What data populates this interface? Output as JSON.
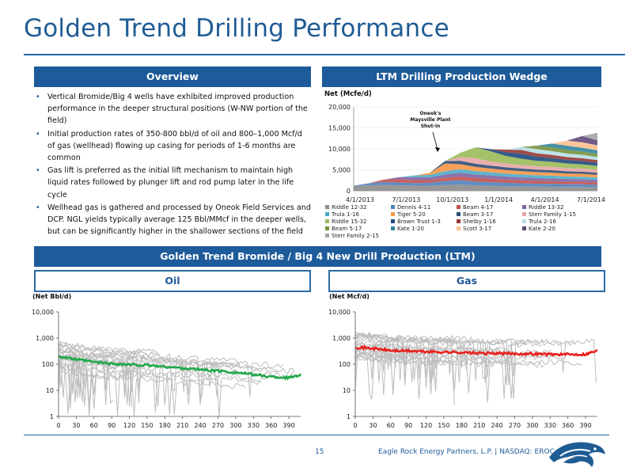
{
  "title": "Golden Trend Drilling Performance",
  "overview": {
    "header": "Overview",
    "bullets": [
      "Vertical Bromide/Big 4 wells have exhibited improved production performance in the deeper structural positions (W-NW portion of the field)",
      "Initial production rates of 350-800 bbl/d of oil and 800–1,000 Mcf/d of gas (wellhead) flowing up casing for periods of 1-6 months are common",
      "Gas lift is preferred as the initial lift mechanism to maintain high liquid rates followed by plunger lift and rod pump later in the life cycle",
      "Wellhead gas is gathered and processed by Oneok Field Services and DCP.  NGL yields typically average 125 Bbl/MMcf in the deeper wells, but can be significantly higher in the shallower sections of the field"
    ]
  },
  "wedge": {
    "header": "LTM Drilling Production Wedge",
    "annotation": [
      "Oneok's",
      "Maysville Plant",
      "Shut-in"
    ]
  },
  "section_header": "Golden Trend Bromide / Big 4 New Drill Production (LTM)",
  "oil_header": "Oil",
  "gas_header": "Gas",
  "colors": {
    "accent": "#1e5b9a",
    "oil_line": "#22a84a",
    "gas_line": "#e8221f",
    "wells": "#bdbdbd"
  },
  "footer": {
    "page": "15",
    "company": "Eagle Rock Energy Partners, L.P.  |  NASDAQ: EROC"
  },
  "logo_icon": "eagle-head-icon",
  "chart_data": [
    {
      "type": "area",
      "ylabel": "Net (Mcfe/d)",
      "x_ticks": [
        "4/1/2013",
        "7/1/2013",
        "10/1/2013",
        "1/1/2014",
        "4/1/2014",
        "7/1/2014"
      ],
      "y_ticks": [
        "0",
        "5,000",
        "10,000",
        "15,000",
        "20,000"
      ],
      "ylim": [
        0,
        20000
      ],
      "stacked": true,
      "x_dates": [
        "4/1/2013",
        "5/1/2013",
        "6/1/2013",
        "7/1/2013",
        "8/1/2013",
        "9/1/2013",
        "10/1/2013",
        "11/1/2013",
        "12/1/2013",
        "1/1/2014",
        "2/1/2014",
        "3/1/2014",
        "4/1/2014",
        "5/1/2014",
        "6/1/2014",
        "7/1/2014",
        "8/1/2014"
      ],
      "series": [
        {
          "name": "Riddle 12-32",
          "color": "#8c8c8c",
          "values": [
            1200,
            1300,
            1400,
            1300,
            1250,
            1200,
            1400,
            1500,
            1300,
            1200,
            1100,
            1050,
            1000,
            950,
            900,
            900,
            850
          ]
        },
        {
          "name": "Dennis 4-11",
          "color": "#4f81bd",
          "values": [
            0,
            500,
            700,
            650,
            600,
            700,
            900,
            1000,
            900,
            850,
            800,
            750,
            700,
            700,
            650,
            650,
            600
          ]
        },
        {
          "name": "Beam 4-17",
          "color": "#c0504d",
          "values": [
            0,
            0,
            600,
            800,
            700,
            650,
            800,
            900,
            850,
            800,
            750,
            700,
            650,
            650,
            600,
            600,
            550
          ]
        },
        {
          "name": "Riddle 13-32",
          "color": "#8064a2",
          "values": [
            0,
            0,
            0,
            500,
            700,
            650,
            800,
            900,
            850,
            800,
            750,
            700,
            700,
            650,
            650,
            600,
            600
          ]
        },
        {
          "name": "Trula 1-16",
          "color": "#4bacc6",
          "values": [
            0,
            0,
            0,
            0,
            400,
            600,
            800,
            850,
            800,
            750,
            700,
            700,
            650,
            650,
            600,
            600,
            550
          ]
        },
        {
          "name": "Tiger 5-20",
          "color": "#f79646",
          "values": [
            0,
            0,
            0,
            0,
            0,
            500,
            1800,
            1200,
            1000,
            900,
            850,
            800,
            750,
            750,
            700,
            700,
            650
          ]
        },
        {
          "name": "Beam 3-17",
          "color": "#2c4d75",
          "values": [
            0,
            0,
            0,
            0,
            0,
            0,
            600,
            800,
            750,
            700,
            650,
            600,
            600,
            550,
            550,
            500,
            500
          ]
        },
        {
          "name": "Sterr Family 1-15",
          "color": "#e6a6a6",
          "values": [
            0,
            0,
            0,
            0,
            0,
            0,
            0,
            900,
            1300,
            1000,
            900,
            850,
            800,
            800,
            750,
            750,
            700
          ]
        },
        {
          "name": "Riddle 15-32",
          "color": "#9bbb59",
          "values": [
            0,
            0,
            0,
            0,
            0,
            0,
            0,
            1000,
            2600,
            2400,
            1800,
            1500,
            1300,
            1200,
            1100,
            1000,
            950
          ]
        },
        {
          "name": "Brown Trust 1-3",
          "color": "#1f497d",
          "values": [
            0,
            0,
            0,
            0,
            0,
            0,
            0,
            0,
            0,
            500,
            900,
            1200,
            1000,
            900,
            850,
            800,
            750
          ]
        },
        {
          "name": "Shelby 1-16",
          "color": "#953735",
          "values": [
            0,
            0,
            0,
            0,
            0,
            0,
            0,
            0,
            0,
            0,
            600,
            900,
            800,
            750,
            700,
            650,
            600
          ]
        },
        {
          "name": "Trula 2-16",
          "color": "#b7dee8",
          "values": [
            0,
            0,
            0,
            0,
            0,
            0,
            0,
            0,
            0,
            0,
            0,
            700,
            1000,
            900,
            850,
            800,
            750
          ]
        },
        {
          "name": "Beam 5-17",
          "color": "#77933c",
          "values": [
            0,
            0,
            0,
            0,
            0,
            0,
            0,
            0,
            0,
            0,
            0,
            0,
            800,
            900,
            850,
            800,
            750
          ]
        },
        {
          "name": "Kate 1-20",
          "color": "#31859c",
          "values": [
            0,
            0,
            0,
            0,
            0,
            0,
            0,
            0,
            0,
            0,
            0,
            0,
            0,
            900,
            1000,
            900,
            850
          ]
        },
        {
          "name": "Scott 3-17",
          "color": "#fac090",
          "values": [
            0,
            0,
            0,
            0,
            0,
            0,
            0,
            0,
            0,
            0,
            0,
            0,
            0,
            0,
            1200,
            1300,
            1200
          ]
        },
        {
          "name": "Kate 2-20",
          "color": "#604a7b",
          "values": [
            0,
            0,
            0,
            0,
            0,
            0,
            0,
            0,
            0,
            0,
            0,
            0,
            0,
            0,
            0,
            1500,
            1200
          ]
        },
        {
          "name": "Sterr Family 2-15",
          "color": "#a6a6a6",
          "values": [
            0,
            0,
            0,
            0,
            0,
            0,
            0,
            0,
            0,
            0,
            0,
            0,
            0,
            0,
            0,
            0,
            1800
          ]
        }
      ]
    },
    {
      "type": "line",
      "ylabel": "(Net Bbl/d)",
      "log_scale": true,
      "ylim": [
        1,
        10000
      ],
      "y_ticks": [
        "1",
        "10",
        "100",
        "1,000",
        "10,000"
      ],
      "x_ticks": [
        "0",
        "30",
        "60",
        "90",
        "120",
        "150",
        "180",
        "210",
        "240",
        "270",
        "300",
        "330",
        "360",
        "390"
      ],
      "xlim": [
        0,
        410
      ],
      "average": {
        "color": "#22a84a",
        "x": [
          0,
          30,
          60,
          90,
          120,
          150,
          180,
          210,
          240,
          270,
          300,
          330,
          360,
          390,
          410
        ],
        "y": [
          200,
          150,
          120,
          105,
          95,
          90,
          80,
          70,
          62,
          55,
          48,
          40,
          33,
          30,
          40
        ]
      },
      "wells_color": "#bdbdbd"
    },
    {
      "type": "line",
      "ylabel": "(Net Mcf/d)",
      "log_scale": true,
      "ylim": [
        1,
        10000
      ],
      "y_ticks": [
        "1",
        "10",
        "100",
        "1,000",
        "10,000"
      ],
      "x_ticks": [
        "0",
        "30",
        "60",
        "90",
        "120",
        "150",
        "180",
        "210",
        "240",
        "270",
        "300",
        "330",
        "360",
        "390"
      ],
      "xlim": [
        0,
        410
      ],
      "average": {
        "color": "#e8221f",
        "x": [
          0,
          30,
          60,
          90,
          120,
          150,
          180,
          210,
          240,
          270,
          300,
          330,
          360,
          390,
          410
        ],
        "y": [
          450,
          400,
          330,
          320,
          300,
          290,
          280,
          260,
          260,
          250,
          250,
          240,
          235,
          240,
          330
        ]
      },
      "wells_color": "#bdbdbd"
    }
  ]
}
